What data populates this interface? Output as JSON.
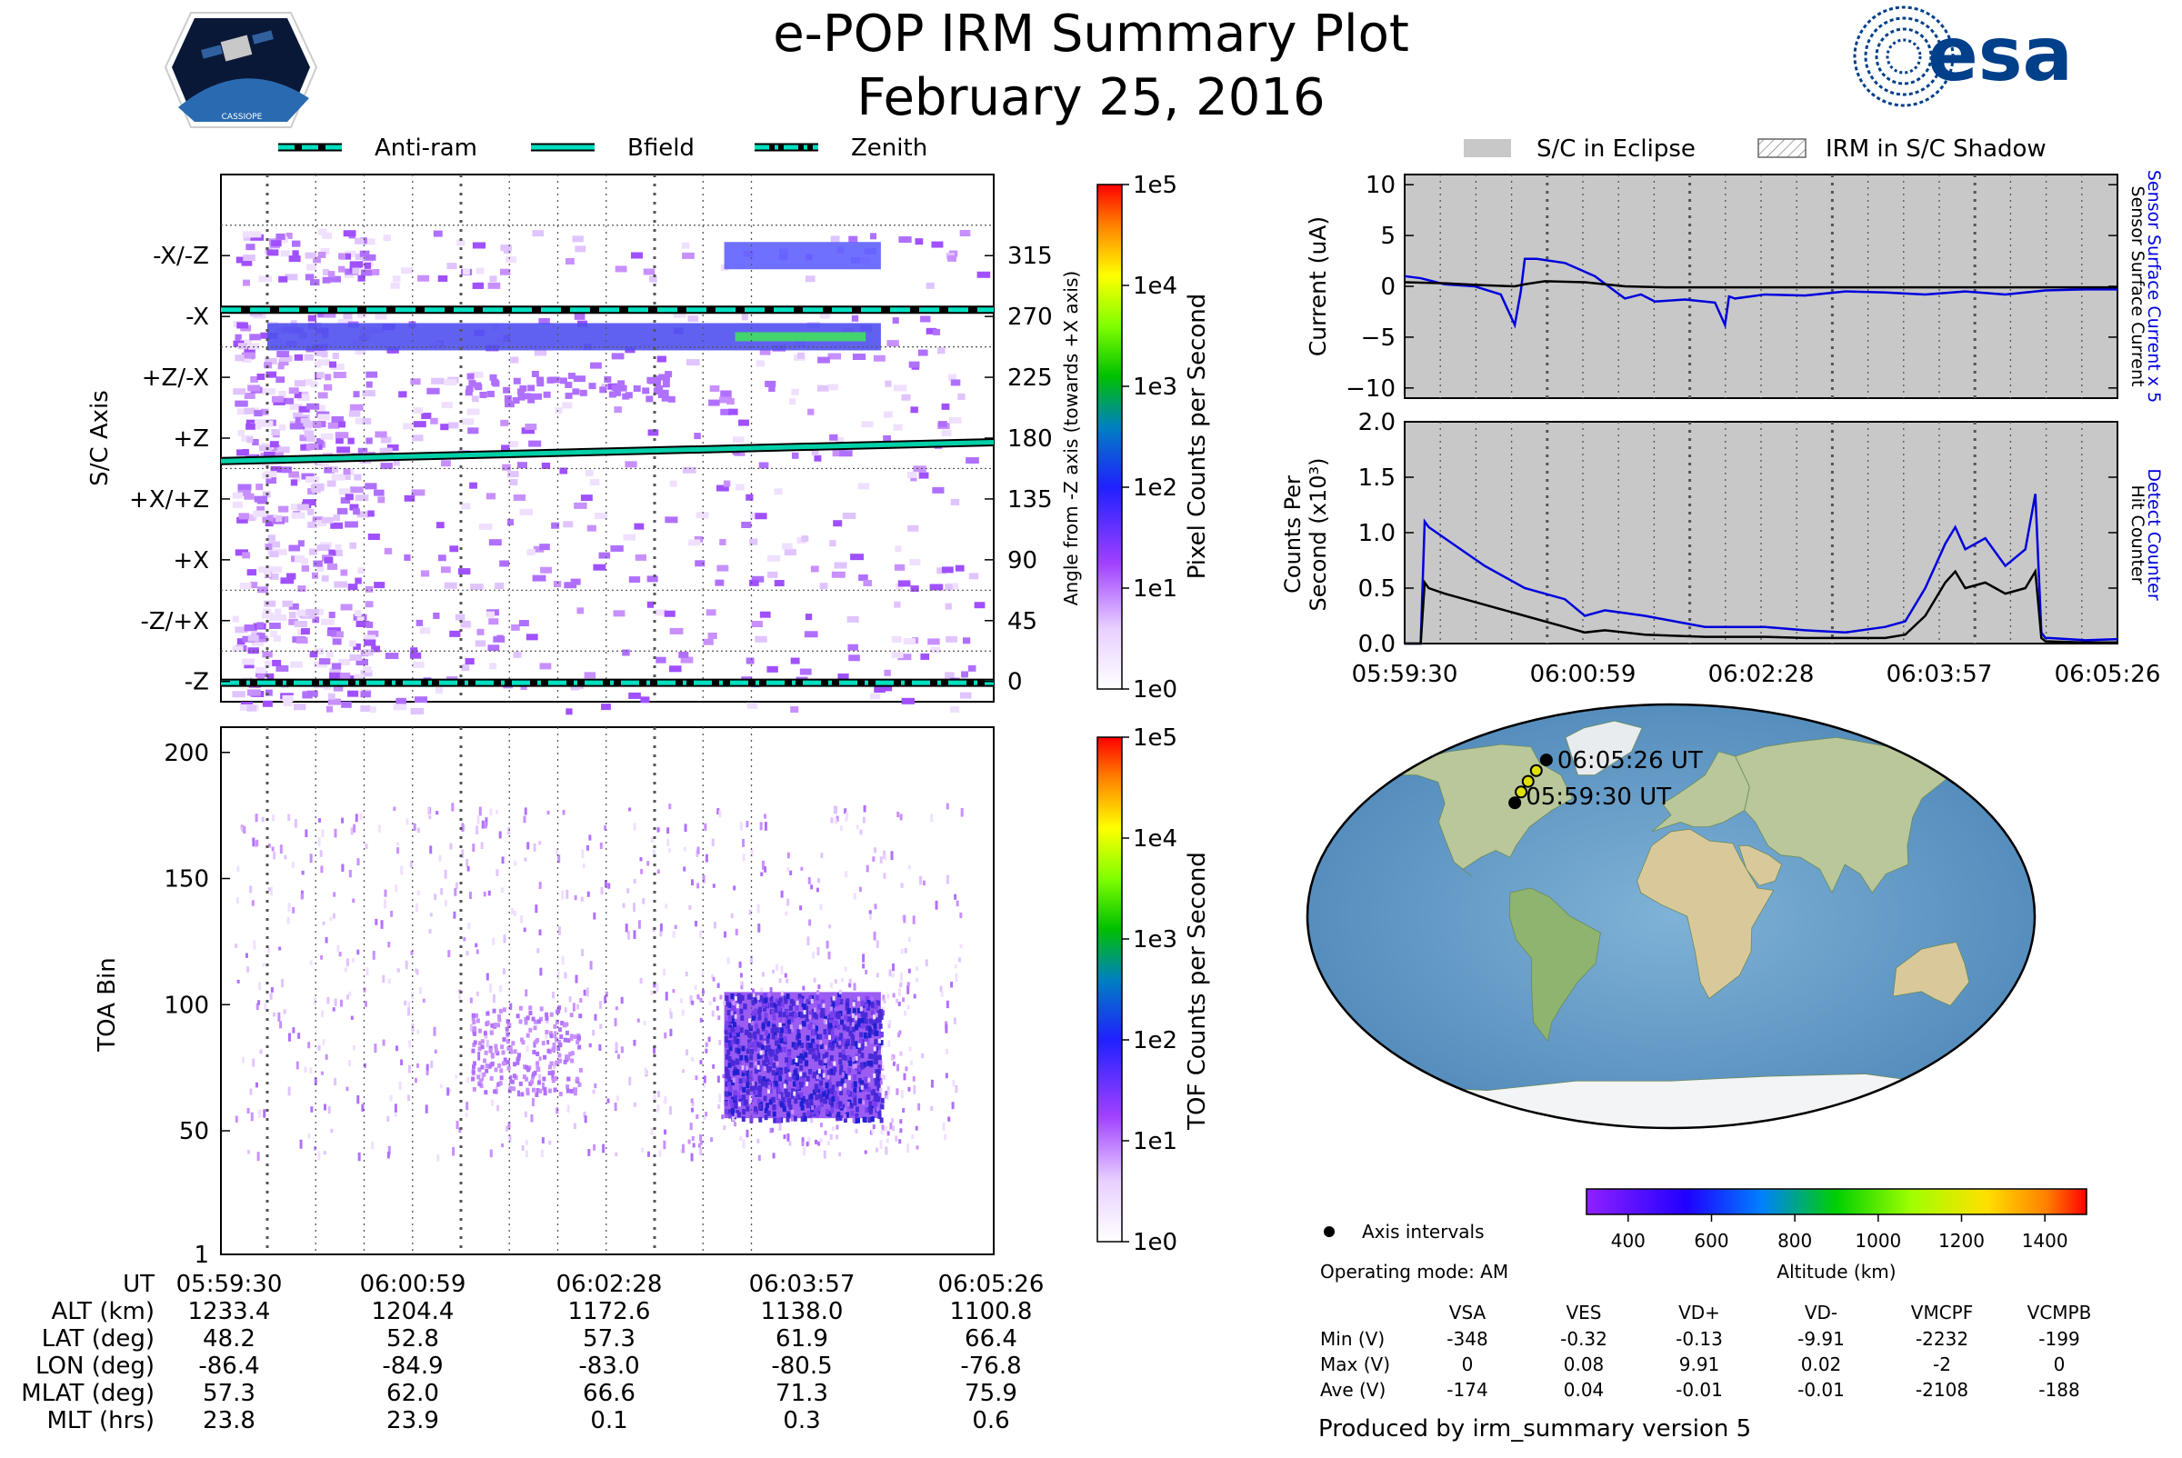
{
  "header": {
    "title": "e-POP IRM Summary Plot",
    "subtitle": "February 25, 2016",
    "left_logo": "cassiope-mission-logo",
    "right_logo": "esa-logo",
    "right_logo_text": "esa",
    "left_logo_text": "CASSIOPE"
  },
  "colors": {
    "anti_ram": "#00e0c0",
    "bfield": "#00d0a8",
    "zenith": "#00e0c0",
    "current_total": "#000000",
    "current_scaled": "#0000dd",
    "eclipse": "#c8c8c8",
    "grid": "#555555"
  },
  "scatter_legend": [
    {
      "label": "Anti-ram",
      "style": "dashed"
    },
    {
      "label": "Bfield",
      "style": "solid"
    },
    {
      "label": "Zenith",
      "style": "dashdot"
    }
  ],
  "right_legend": [
    {
      "label": "S/C in Eclipse",
      "style": "fill"
    },
    {
      "label": "IRM in S/C Shadow",
      "style": "hatch"
    }
  ],
  "chart_data": [
    {
      "id": "pixel-panel",
      "type": "heatmap",
      "ylabel": "S/C Axis",
      "ylabel_right": "Angle from -Z axis (towards +X axis)",
      "y_categories": [
        "-X/-Z",
        "-X",
        "+Z/-X",
        "+Z",
        "+X/+Z",
        "+X",
        "-Z/+X",
        "-Z"
      ],
      "y_right_ticks": [
        "315",
        "270",
        "225",
        "180",
        "135",
        "90",
        "45",
        "0"
      ],
      "ylim": [
        -15,
        375
      ],
      "xlim": [
        "05:59:07",
        "06:05:26"
      ],
      "lines": [
        {
          "name": "Anti-ram",
          "y_start": 275,
          "y_end": 275
        },
        {
          "name": "Bfield",
          "y_start": 163,
          "y_end": 177
        },
        {
          "name": "Zenith",
          "y_start": -1,
          "y_end": -1
        }
      ],
      "intense_bands": [
        {
          "angle": 315,
          "from": "06:03:00",
          "to": "06:04:12",
          "level": "1e2"
        },
        {
          "angle": 255,
          "from": "05:59:30",
          "to": "06:04:12",
          "level": "1e2"
        },
        {
          "angle": 255,
          "from": "06:03:05",
          "to": "06:04:05",
          "level": "1e3"
        }
      ],
      "colorbar": {
        "label": "Pixel Counts per Second",
        "ticks": [
          "1e5",
          "1e4",
          "1e3",
          "1e2",
          "1e1",
          "1e0"
        ]
      }
    },
    {
      "id": "tof-panel",
      "type": "heatmap",
      "ylabel": "TOA Bin",
      "y_ticks": [
        "200",
        "150",
        "100",
        "50",
        "1"
      ],
      "ylim": [
        1,
        210
      ],
      "xlim": [
        "05:59:07",
        "06:05:26"
      ],
      "intense_region": {
        "from": "06:03:00",
        "to": "06:04:12",
        "bins": [
          55,
          105
        ],
        "level": "1e2"
      },
      "colorbar": {
        "label": "TOF Counts per Second",
        "ticks": [
          "1e5",
          "1e4",
          "1e3",
          "1e2",
          "1e1",
          "1e0"
        ]
      }
    },
    {
      "id": "current-panel",
      "type": "line",
      "ylabel": "Current (uA)",
      "right_label_blue": "Sensor Surface Current x 5",
      "right_label_black": "Sensor Surface Current",
      "y_ticks": [
        "10",
        "5",
        "0",
        "−5",
        "−10"
      ],
      "ylim": [
        -11,
        11
      ],
      "x_seconds_range": [
        0,
        356
      ],
      "series": [
        {
          "name": "Sensor Surface Current x 5",
          "color": "#0000dd",
          "x": [
            0,
            8,
            20,
            35,
            48,
            55,
            58,
            60,
            66,
            80,
            95,
            110,
            118,
            125,
            140,
            155,
            160,
            162,
            165,
            180,
            200,
            220,
            240,
            260,
            280,
            300,
            320,
            340,
            356
          ],
          "values": [
            1.0,
            0.8,
            0.2,
            0.0,
            -0.8,
            -3.8,
            -0.5,
            2.7,
            2.7,
            2.3,
            1.0,
            -1.2,
            -0.8,
            -1.5,
            -1.3,
            -1.6,
            -3.8,
            -1.0,
            -1.2,
            -0.8,
            -0.9,
            -0.5,
            -0.6,
            -0.8,
            -0.5,
            -0.8,
            -0.4,
            -0.3,
            -0.3
          ]
        },
        {
          "name": "Sensor Surface Current",
          "color": "#000000",
          "x": [
            0,
            20,
            40,
            55,
            60,
            70,
            90,
            110,
            130,
            160,
            200,
            240,
            280,
            320,
            356
          ],
          "values": [
            0.4,
            0.3,
            0.1,
            0.0,
            0.2,
            0.5,
            0.4,
            0.0,
            -0.1,
            -0.1,
            -0.1,
            -0.1,
            -0.1,
            -0.1,
            -0.1
          ]
        }
      ]
    },
    {
      "id": "counts-panel",
      "type": "line",
      "ylabel": "Counts Per Second (x10^3)",
      "right_label_blue": "Detect Counter",
      "right_label_black": "Hit Counter",
      "y_ticks": [
        "2.0",
        "1.5",
        "1.0",
        "0.5",
        "0.0"
      ],
      "ylim": [
        0,
        2.0
      ],
      "x_ticks": [
        "05:59:30",
        "06:00:59",
        "06:02:28",
        "06:03:57",
        "06:05:26"
      ],
      "x_seconds_range": [
        0,
        356
      ],
      "series": [
        {
          "name": "Detect Counter",
          "color": "#0000dd",
          "x": [
            0,
            8,
            10,
            12,
            20,
            40,
            60,
            80,
            90,
            100,
            120,
            150,
            180,
            200,
            220,
            240,
            250,
            260,
            270,
            275,
            280,
            290,
            300,
            310,
            315,
            318,
            320,
            322,
            340,
            356
          ],
          "values": [
            0.0,
            0.0,
            1.1,
            1.05,
            0.95,
            0.7,
            0.5,
            0.4,
            0.25,
            0.3,
            0.25,
            0.15,
            0.15,
            0.12,
            0.1,
            0.15,
            0.2,
            0.5,
            0.9,
            1.05,
            0.85,
            0.95,
            0.7,
            0.85,
            1.35,
            0.1,
            0.05,
            0.05,
            0.03,
            0.04
          ]
        },
        {
          "name": "Hit Counter",
          "color": "#000000",
          "x": [
            0,
            8,
            10,
            12,
            20,
            40,
            60,
            80,
            90,
            100,
            120,
            150,
            180,
            200,
            220,
            240,
            250,
            260,
            270,
            275,
            280,
            290,
            300,
            310,
            315,
            318,
            320,
            340,
            356
          ],
          "values": [
            0.0,
            0.0,
            0.55,
            0.5,
            0.45,
            0.35,
            0.25,
            0.15,
            0.1,
            0.12,
            0.08,
            0.06,
            0.06,
            0.05,
            0.05,
            0.05,
            0.08,
            0.25,
            0.55,
            0.65,
            0.5,
            0.55,
            0.45,
            0.5,
            0.65,
            0.05,
            0.02,
            0.01,
            0.01
          ]
        }
      ]
    }
  ],
  "x_axis_times": [
    "05:59:30",
    "06:00:59",
    "06:02:28",
    "06:03:57",
    "06:05:26"
  ],
  "ephemeris": {
    "row_labels": [
      "UT",
      "ALT (km)",
      "LAT (deg)",
      "LON (deg)",
      "MLAT (deg)",
      "MLT (hrs)"
    ],
    "columns": [
      [
        "05:59:30",
        "1233.4",
        "48.2",
        "-86.4",
        "57.3",
        "23.8"
      ],
      [
        "06:00:59",
        "1204.4",
        "52.8",
        "-84.9",
        "62.0",
        "23.9"
      ],
      [
        "06:02:28",
        "1172.6",
        "57.3",
        "-83.0",
        "66.6",
        "0.1"
      ],
      [
        "06:03:57",
        "1138.0",
        "61.9",
        "-80.5",
        "71.3",
        "0.3"
      ],
      [
        "06:05:26",
        "1100.8",
        "66.4",
        "-76.8",
        "75.9",
        "0.6"
      ]
    ]
  },
  "map": {
    "start_label": "05:59:30 UT",
    "end_label": "06:05:26 UT",
    "track": [
      {
        "lat": 48.2,
        "lon": -86.4
      },
      {
        "lat": 52.8,
        "lon": -84.9
      },
      {
        "lat": 57.3,
        "lon": -83.0
      },
      {
        "lat": 61.9,
        "lon": -80.5
      },
      {
        "lat": 66.4,
        "lon": -76.8
      }
    ],
    "altitude_colorbar": {
      "label": "Altitude (km)",
      "ticks": [
        "400",
        "600",
        "800",
        "1000",
        "1200",
        "1400"
      ]
    },
    "axis_intervals_label": "Axis intervals",
    "operating_mode": "Operating mode: AM"
  },
  "voltage_table": {
    "columns": [
      "VSA",
      "VES",
      "VD+",
      "VD-",
      "VMCPF",
      "VCMPB"
    ],
    "rows": [
      {
        "label": "Min (V)",
        "values": [
          "-348",
          "-0.32",
          "-0.13",
          "-9.91",
          "-2232",
          "-199"
        ]
      },
      {
        "label": "Max (V)",
        "values": [
          "0",
          "0.08",
          "9.91",
          "0.02",
          "-2",
          "0"
        ]
      },
      {
        "label": "Ave (V)",
        "values": [
          "-174",
          "0.04",
          "-0.01",
          "-0.01",
          "-2108",
          "-188"
        ]
      }
    ]
  },
  "footer": "Produced by irm_summary version 5"
}
